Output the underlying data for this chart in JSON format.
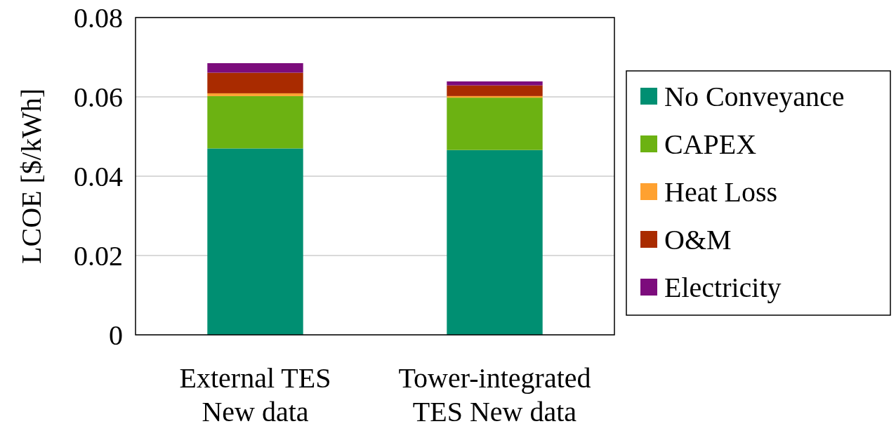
{
  "chart_data": {
    "type": "bar",
    "stacked": true,
    "ylabel": "LCOE [$/kWh]",
    "categories": [
      "External TES\nNew data",
      "Tower-integrated\nTES New data"
    ],
    "series": [
      {
        "name": "No Conveyance",
        "color": "#008f72",
        "values": [
          0.047,
          0.0466
        ]
      },
      {
        "name": "CAPEX",
        "color": "#6cb212",
        "values": [
          0.0132,
          0.0132
        ]
      },
      {
        "name": "Heat Loss",
        "color": "#ffa130",
        "values": [
          0.0007,
          0.0004
        ]
      },
      {
        "name": "O&M",
        "color": "#a92b00",
        "values": [
          0.0052,
          0.0027
        ]
      },
      {
        "name": "Electricity",
        "color": "#7c0c7c",
        "values": [
          0.0024,
          0.001
        ]
      }
    ],
    "ylim": [
      0,
      0.08
    ],
    "yticks": [
      {
        "value": 0,
        "label": "0"
      },
      0.02,
      0.04,
      0.06,
      0.08
    ],
    "grid": "y",
    "legend": "right"
  }
}
